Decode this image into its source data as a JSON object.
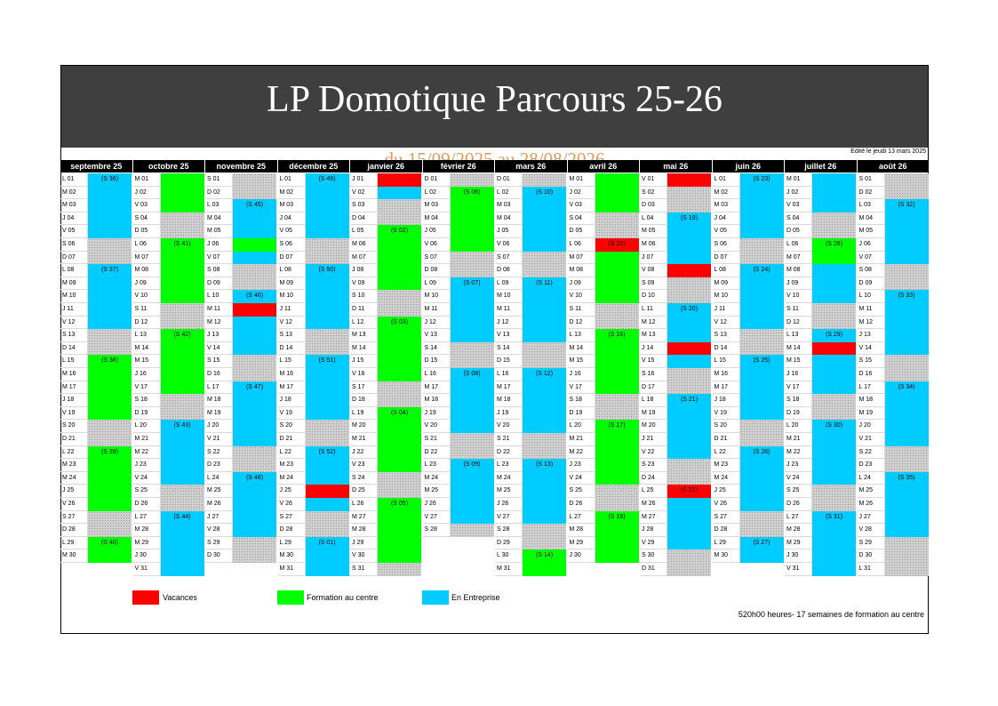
{
  "title": "LP Domotique Parcours 25-26",
  "subtitle": "du 15/09/2025 au 28/08/2026",
  "edited": "Edité le jeudi 13 mars 2025",
  "footnote": "520h00 heures- 17 semaines de formation au centre",
  "colors": {
    "vacances": "#ff0000",
    "formation": "#00ff00",
    "entreprise": "#00ccff",
    "off": "#cfcfcf"
  },
  "legend": [
    {
      "label": "Vacances",
      "color": "#ff0000"
    },
    {
      "label": "Formation au centre",
      "color": "#00ff00"
    },
    {
      "label": "En Entreprise",
      "color": "#00ccff"
    }
  ],
  "months": [
    {
      "name": "septembre 25",
      "days": [
        "L 01",
        "M 02",
        "M 03",
        "J 04",
        "V 05",
        "S 06",
        "D 07",
        "L 08",
        "M 09",
        "M 10",
        "J 11",
        "V 12",
        "S 13",
        "D 14",
        "L 15",
        "M 16",
        "M 17",
        "J 18",
        "V 19",
        "S 20",
        "D 21",
        "L 22",
        "M 23",
        "M 24",
        "J 25",
        "V 26",
        "S 27",
        "D 28",
        "L 29",
        "M 30"
      ],
      "blocks": [
        [
          "blue",
          0,
          5
        ],
        [
          "grey",
          5,
          2
        ],
        [
          "blue",
          7,
          5
        ],
        [
          "grey",
          12,
          2
        ],
        [
          "green",
          14,
          5
        ],
        [
          "grey",
          19,
          2
        ],
        [
          "green",
          21,
          5
        ],
        [
          "grey",
          26,
          2
        ],
        [
          "green",
          28,
          2
        ]
      ],
      "weeks": [
        [
          0,
          "(S 36)"
        ],
        [
          7,
          "(S 37)"
        ],
        [
          14,
          "(S 38)"
        ],
        [
          21,
          "(S 39)"
        ],
        [
          28,
          "(S 40)"
        ]
      ]
    },
    {
      "name": "octobre 25",
      "days": [
        "M 01",
        "J 02",
        "V 03",
        "S 04",
        "D 05",
        "L 06",
        "M 07",
        "M 08",
        "J 09",
        "V 10",
        "S 11",
        "D 12",
        "L 13",
        "M 14",
        "M 15",
        "J 16",
        "V 17",
        "S 18",
        "D 19",
        "L 20",
        "M 21",
        "M 22",
        "J 23",
        "V 24",
        "S 25",
        "D 26",
        "L 27",
        "M 28",
        "M 29",
        "J 30",
        "V 31"
      ],
      "blocks": [
        [
          "green",
          0,
          3
        ],
        [
          "grey",
          3,
          2
        ],
        [
          "green",
          5,
          5
        ],
        [
          "grey",
          10,
          2
        ],
        [
          "green",
          12,
          5
        ],
        [
          "grey",
          17,
          2
        ],
        [
          "blue",
          19,
          5
        ],
        [
          "grey",
          24,
          2
        ],
        [
          "blue",
          26,
          5
        ]
      ],
      "weeks": [
        [
          5,
          "(S 41)"
        ],
        [
          12,
          "(S 42)"
        ],
        [
          19,
          "(S 43)"
        ],
        [
          26,
          "(S 44)"
        ]
      ]
    },
    {
      "name": "novembre 25",
      "days": [
        "S 01",
        "D 02",
        "L 03",
        "M 04",
        "M 05",
        "J 06",
        "V 07",
        "S 08",
        "D 09",
        "L 10",
        "M 11",
        "M 12",
        "J 13",
        "V 14",
        "S 15",
        "D 16",
        "L 17",
        "M 18",
        "M 19",
        "J 20",
        "V 21",
        "S 22",
        "D 23",
        "L 24",
        "M 25",
        "M 26",
        "J 27",
        "V 28",
        "S 29",
        "D 30"
      ],
      "blocks": [
        [
          "grey",
          0,
          2
        ],
        [
          "blue",
          2,
          3
        ],
        [
          "green",
          5,
          1
        ],
        [
          "blue",
          6,
          1
        ],
        [
          "grey",
          7,
          2
        ],
        [
          "blue",
          9,
          1
        ],
        [
          "red",
          10,
          1
        ],
        [
          "blue",
          11,
          3
        ],
        [
          "grey",
          14,
          2
        ],
        [
          "blue",
          16,
          5
        ],
        [
          "grey",
          21,
          2
        ],
        [
          "blue",
          23,
          5
        ],
        [
          "grey",
          28,
          2
        ]
      ],
      "weeks": [
        [
          2,
          "(S 45)"
        ],
        [
          9,
          "(S 46)"
        ],
        [
          16,
          "(S 47)"
        ],
        [
          23,
          "(S 48)"
        ]
      ]
    },
    {
      "name": "décembre 25",
      "days": [
        "L 01",
        "M 02",
        "M 03",
        "J 04",
        "V 05",
        "S 06",
        "D 07",
        "L 08",
        "M 09",
        "M 10",
        "J 11",
        "V 12",
        "S 13",
        "D 14",
        "L 15",
        "M 16",
        "M 17",
        "J 18",
        "V 19",
        "S 20",
        "D 21",
        "L 22",
        "M 23",
        "M 24",
        "J 25",
        "V 26",
        "S 27",
        "D 28",
        "L 29",
        "M 30",
        "M 31"
      ],
      "blocks": [
        [
          "blue",
          0,
          5
        ],
        [
          "grey",
          5,
          2
        ],
        [
          "blue",
          7,
          5
        ],
        [
          "grey",
          12,
          2
        ],
        [
          "blue",
          14,
          5
        ],
        [
          "grey",
          19,
          2
        ],
        [
          "blue",
          21,
          3
        ],
        [
          "red",
          24,
          1
        ],
        [
          "blue",
          25,
          1
        ],
        [
          "grey",
          26,
          2
        ],
        [
          "blue",
          28,
          3
        ]
      ],
      "weeks": [
        [
          0,
          "(S 49)"
        ],
        [
          7,
          "(S 50)"
        ],
        [
          14,
          "(S 51)"
        ],
        [
          21,
          "(S 52)"
        ],
        [
          28,
          "(S 01)"
        ]
      ]
    },
    {
      "name": "janvier 26",
      "days": [
        "J 01",
        "V 02",
        "S 03",
        "D 04",
        "L 05",
        "M 06",
        "M 07",
        "J 08",
        "V 09",
        "S 10",
        "D 11",
        "L 12",
        "M 13",
        "M 14",
        "J 15",
        "V 16",
        "S 17",
        "D 18",
        "L 19",
        "M 20",
        "M 21",
        "J 22",
        "V 23",
        "S 24",
        "D 25",
        "L 26",
        "M 27",
        "M 28",
        "J 29",
        "V 30",
        "S 31"
      ],
      "blocks": [
        [
          "red",
          0,
          1
        ],
        [
          "blue",
          1,
          1
        ],
        [
          "grey",
          2,
          2
        ],
        [
          "green",
          4,
          5
        ],
        [
          "grey",
          9,
          2
        ],
        [
          "green",
          11,
          5
        ],
        [
          "grey",
          16,
          2
        ],
        [
          "green",
          18,
          5
        ],
        [
          "grey",
          23,
          2
        ],
        [
          "green",
          25,
          5
        ],
        [
          "grey",
          30,
          1
        ]
      ],
      "weeks": [
        [
          4,
          "(S 02)"
        ],
        [
          11,
          "(S 03)"
        ],
        [
          18,
          "(S 04)"
        ],
        [
          25,
          "(S 05)"
        ]
      ]
    },
    {
      "name": "février 26",
      "days": [
        "D 01",
        "L 02",
        "M 03",
        "M 04",
        "J 05",
        "V 06",
        "S 07",
        "D 08",
        "L 09",
        "M 10",
        "M 11",
        "J 12",
        "V 13",
        "S 14",
        "D 15",
        "L 16",
        "M 17",
        "M 18",
        "J 19",
        "V 20",
        "S 21",
        "D 22",
        "L 23",
        "M 24",
        "M 25",
        "J 26",
        "V 27",
        "S 28"
      ],
      "blocks": [
        [
          "grey",
          0,
          1
        ],
        [
          "green",
          1,
          5
        ],
        [
          "grey",
          6,
          2
        ],
        [
          "blue",
          8,
          5
        ],
        [
          "grey",
          13,
          2
        ],
        [
          "blue",
          15,
          5
        ],
        [
          "grey",
          20,
          2
        ],
        [
          "blue",
          22,
          5
        ],
        [
          "grey",
          27,
          1
        ]
      ],
      "weeks": [
        [
          1,
          "(S 06)"
        ],
        [
          8,
          "(S 07)"
        ],
        [
          15,
          "(S 08)"
        ],
        [
          22,
          "(S 09)"
        ]
      ]
    },
    {
      "name": "mars 26",
      "days": [
        "D 01",
        "L 02",
        "M 03",
        "M 04",
        "J 05",
        "V 06",
        "S 07",
        "D 08",
        "L 09",
        "M 10",
        "M 11",
        "J 12",
        "V 13",
        "S 14",
        "D 15",
        "L 16",
        "M 17",
        "M 18",
        "J 19",
        "V 20",
        "S 21",
        "D 22",
        "L 23",
        "M 24",
        "M 25",
        "J 26",
        "V 27",
        "S 28",
        "D 29",
        "L 30",
        "M 31"
      ],
      "blocks": [
        [
          "grey",
          0,
          1
        ],
        [
          "blue",
          1,
          5
        ],
        [
          "grey",
          6,
          2
        ],
        [
          "blue",
          8,
          5
        ],
        [
          "grey",
          13,
          2
        ],
        [
          "blue",
          15,
          5
        ],
        [
          "grey",
          20,
          2
        ],
        [
          "blue",
          22,
          5
        ],
        [
          "grey",
          27,
          2
        ],
        [
          "green",
          29,
          2
        ]
      ],
      "weeks": [
        [
          1,
          "(S 10)"
        ],
        [
          8,
          "(S 11)"
        ],
        [
          15,
          "(S 12)"
        ],
        [
          22,
          "(S 13)"
        ],
        [
          29,
          "(S 14)"
        ]
      ]
    },
    {
      "name": "avril 26",
      "days": [
        "M 01",
        "J 02",
        "V 03",
        "S 04",
        "D 05",
        "L 06",
        "M 07",
        "M 08",
        "J 09",
        "V 10",
        "S 11",
        "D 12",
        "L 13",
        "M 14",
        "M 15",
        "J 16",
        "V 17",
        "S 18",
        "D 19",
        "L 20",
        "M 21",
        "M 22",
        "J 23",
        "V 24",
        "S 25",
        "D 26",
        "L 27",
        "M 28",
        "M 29",
        "J 30"
      ],
      "blocks": [
        [
          "green",
          0,
          3
        ],
        [
          "grey",
          3,
          2
        ],
        [
          "red",
          5,
          1
        ],
        [
          "green",
          6,
          4
        ],
        [
          "grey",
          10,
          2
        ],
        [
          "green",
          12,
          5
        ],
        [
          "grey",
          17,
          2
        ],
        [
          "green",
          19,
          5
        ],
        [
          "grey",
          24,
          2
        ],
        [
          "green",
          26,
          4
        ]
      ],
      "weeks": [
        [
          5,
          "(S 15)"
        ],
        [
          12,
          "(S 16)"
        ],
        [
          19,
          "(S 17)"
        ],
        [
          26,
          "(S 18)"
        ]
      ]
    },
    {
      "name": "mai 26",
      "days": [
        "V 01",
        "S 02",
        "D 03",
        "L 04",
        "M 05",
        "M 06",
        "J 07",
        "V 08",
        "S 09",
        "D 10",
        "L 11",
        "M 12",
        "M 13",
        "J 14",
        "V 15",
        "S 16",
        "D 17",
        "L 18",
        "M 19",
        "M 20",
        "J 21",
        "V 22",
        "S 23",
        "D 24",
        "L 25",
        "M 26",
        "M 27",
        "J 28",
        "V 29",
        "S 30",
        "D 31"
      ],
      "blocks": [
        [
          "red",
          0,
          1
        ],
        [
          "grey",
          1,
          2
        ],
        [
          "blue",
          3,
          4
        ],
        [
          "red",
          7,
          1
        ],
        [
          "grey",
          8,
          2
        ],
        [
          "blue",
          10,
          3
        ],
        [
          "red",
          13,
          1
        ],
        [
          "blue",
          14,
          1
        ],
        [
          "grey",
          15,
          2
        ],
        [
          "blue",
          17,
          5
        ],
        [
          "grey",
          22,
          2
        ],
        [
          "red",
          24,
          1
        ],
        [
          "blue",
          25,
          4
        ],
        [
          "grey",
          29,
          2
        ]
      ],
      "weeks": [
        [
          3,
          "(S 19)"
        ],
        [
          10,
          "(S 20)"
        ],
        [
          17,
          "(S 21)"
        ],
        [
          24,
          "(S 22)"
        ]
      ]
    },
    {
      "name": "juin 26",
      "days": [
        "L 01",
        "M 02",
        "M 03",
        "J 04",
        "V 05",
        "S 06",
        "D 07",
        "L 08",
        "M 09",
        "M 10",
        "J 11",
        "V 12",
        "S 13",
        "D 14",
        "L 15",
        "M 16",
        "M 17",
        "J 18",
        "V 19",
        "S 20",
        "D 21",
        "L 22",
        "M 23",
        "M 24",
        "J 25",
        "V 26",
        "S 27",
        "D 28",
        "L 29",
        "M 30"
      ],
      "blocks": [
        [
          "blue",
          0,
          5
        ],
        [
          "grey",
          5,
          2
        ],
        [
          "blue",
          7,
          5
        ],
        [
          "grey",
          12,
          2
        ],
        [
          "blue",
          14,
          5
        ],
        [
          "grey",
          19,
          2
        ],
        [
          "blue",
          21,
          5
        ],
        [
          "grey",
          26,
          2
        ],
        [
          "blue",
          28,
          2
        ]
      ],
      "weeks": [
        [
          0,
          "(S 23)"
        ],
        [
          7,
          "(S 24)"
        ],
        [
          14,
          "(S 25)"
        ],
        [
          21,
          "(S 26)"
        ],
        [
          28,
          "(S 27)"
        ]
      ]
    },
    {
      "name": "juillet 26",
      "days": [
        "M 01",
        "J 02",
        "V 03",
        "S 04",
        "D 05",
        "L 06",
        "M 07",
        "M 08",
        "J 09",
        "V 10",
        "S 11",
        "D 12",
        "L 13",
        "M 14",
        "M 15",
        "J 16",
        "V 17",
        "S 18",
        "D 19",
        "L 20",
        "M 21",
        "M 22",
        "J 23",
        "V 24",
        "S 25",
        "D 26",
        "L 27",
        "M 28",
        "M 29",
        "J 30",
        "V 31"
      ],
      "blocks": [
        [
          "blue",
          0,
          3
        ],
        [
          "grey",
          3,
          2
        ],
        [
          "green",
          5,
          2
        ],
        [
          "blue",
          7,
          3
        ],
        [
          "grey",
          10,
          2
        ],
        [
          "blue",
          12,
          1
        ],
        [
          "red",
          13,
          1
        ],
        [
          "blue",
          14,
          3
        ],
        [
          "grey",
          17,
          2
        ],
        [
          "blue",
          19,
          5
        ],
        [
          "grey",
          24,
          2
        ],
        [
          "blue",
          26,
          5
        ]
      ],
      "weeks": [
        [
          5,
          "(S 28)"
        ],
        [
          12,
          "(S 29)"
        ],
        [
          19,
          "(S 30)"
        ],
        [
          26,
          "(S 31)"
        ]
      ]
    },
    {
      "name": "août 26",
      "days": [
        "S 01",
        "D 02",
        "L 03",
        "M 04",
        "M 05",
        "J 06",
        "V 07",
        "S 08",
        "D 09",
        "L 10",
        "M 11",
        "M 12",
        "J 13",
        "V 14",
        "S 15",
        "D 16",
        "L 17",
        "M 18",
        "M 19",
        "J 20",
        "V 21",
        "S 22",
        "D 23",
        "L 24",
        "M 25",
        "M 26",
        "J 27",
        "V 28",
        "S 29",
        "D 30",
        "L 31"
      ],
      "blocks": [
        [
          "grey",
          0,
          2
        ],
        [
          "blue",
          2,
          5
        ],
        [
          "grey",
          7,
          2
        ],
        [
          "blue",
          9,
          5
        ],
        [
          "grey",
          14,
          2
        ],
        [
          "blue",
          16,
          5
        ],
        [
          "grey",
          21,
          2
        ],
        [
          "blue",
          23,
          5
        ],
        [
          "grey",
          28,
          3
        ]
      ],
      "weeks": [
        [
          2,
          "(S 32)"
        ],
        [
          9,
          "(S 33)"
        ],
        [
          16,
          "(S 34)"
        ],
        [
          23,
          "(S 35)"
        ]
      ]
    }
  ]
}
